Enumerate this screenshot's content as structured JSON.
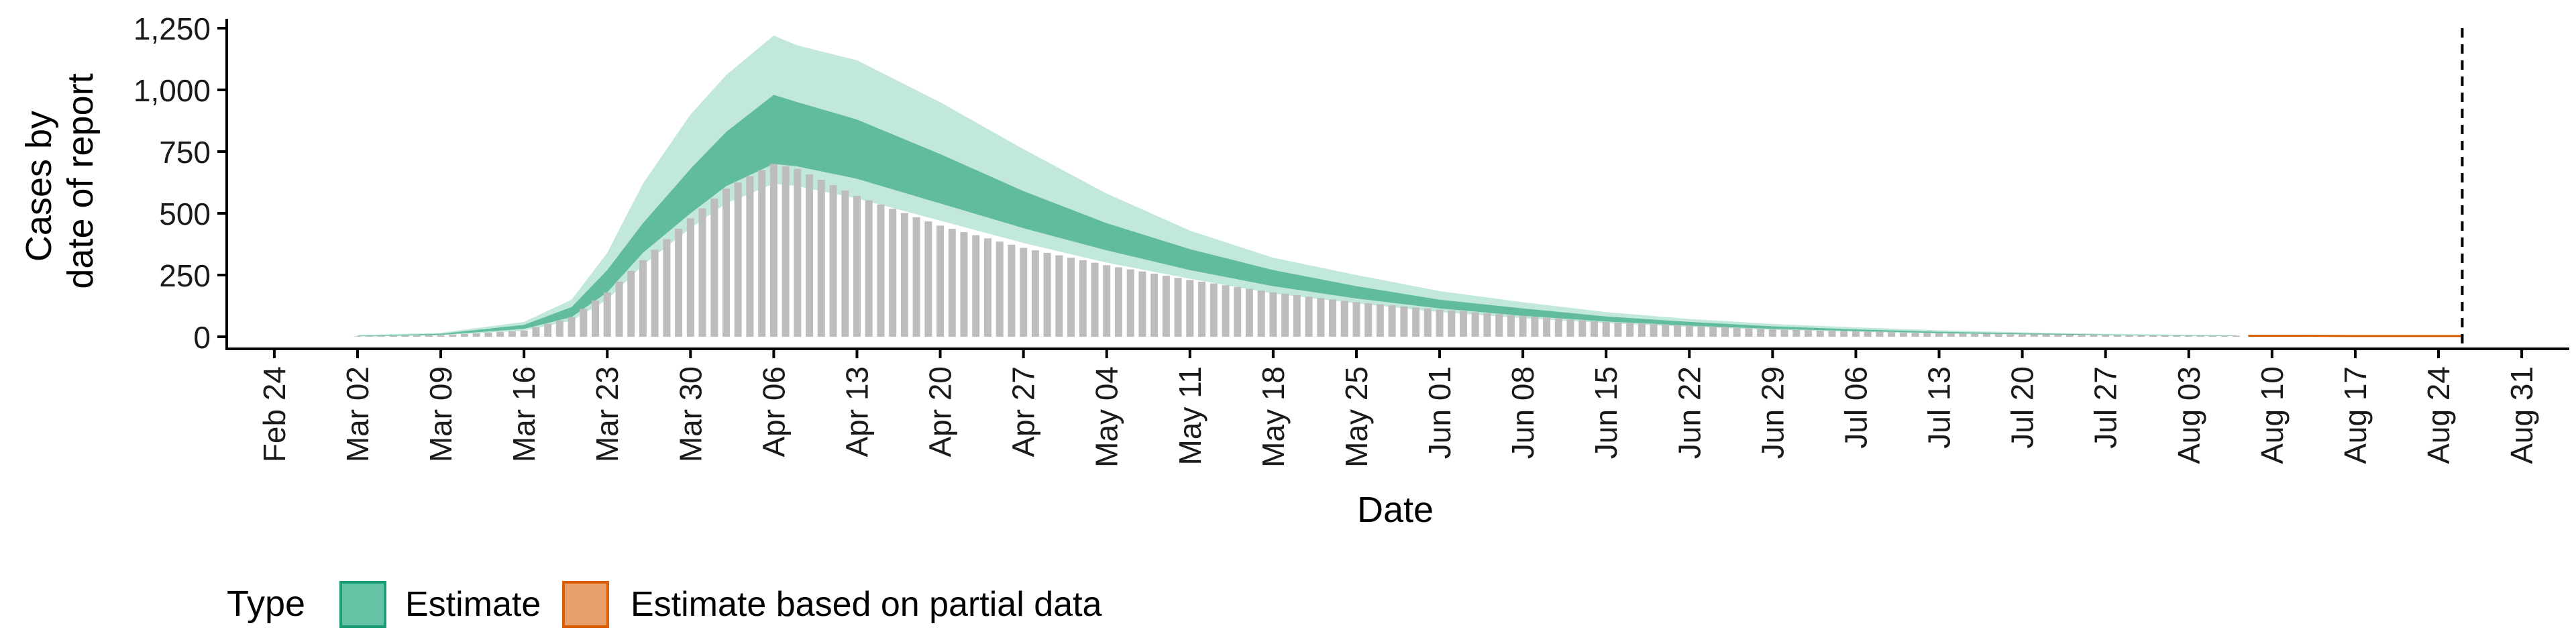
{
  "chart_data": {
    "type": "area",
    "xlabel": "Date",
    "ylabel": [
      "Cases by",
      "date of report"
    ],
    "ylim": [
      0,
      1250
    ],
    "yticks": [
      {
        "value": 0,
        "label": "0"
      },
      {
        "value": 250,
        "label": "250"
      },
      {
        "value": 500,
        "label": "500"
      },
      {
        "value": 750,
        "label": "750"
      },
      {
        "value": 1000,
        "label": "1,000"
      },
      {
        "value": 1250,
        "label": "1,250"
      }
    ],
    "xlim": [
      "2020-02-20",
      "2020-09-04"
    ],
    "xticks": [
      {
        "date": "2020-02-24",
        "label": "Feb 24"
      },
      {
        "date": "2020-03-02",
        "label": "Mar 02"
      },
      {
        "date": "2020-03-09",
        "label": "Mar 09"
      },
      {
        "date": "2020-03-16",
        "label": "Mar 16"
      },
      {
        "date": "2020-03-23",
        "label": "Mar 23"
      },
      {
        "date": "2020-03-30",
        "label": "Mar 30"
      },
      {
        "date": "2020-04-06",
        "label": "Apr 06"
      },
      {
        "date": "2020-04-13",
        "label": "Apr 13"
      },
      {
        "date": "2020-04-20",
        "label": "Apr 20"
      },
      {
        "date": "2020-04-27",
        "label": "Apr 27"
      },
      {
        "date": "2020-05-04",
        "label": "May 04"
      },
      {
        "date": "2020-05-11",
        "label": "May 11"
      },
      {
        "date": "2020-05-18",
        "label": "May 18"
      },
      {
        "date": "2020-05-25",
        "label": "May 25"
      },
      {
        "date": "2020-06-01",
        "label": "Jun 01"
      },
      {
        "date": "2020-06-08",
        "label": "Jun 08"
      },
      {
        "date": "2020-06-15",
        "label": "Jun 15"
      },
      {
        "date": "2020-06-22",
        "label": "Jun 22"
      },
      {
        "date": "2020-06-29",
        "label": "Jun 29"
      },
      {
        "date": "2020-07-06",
        "label": "Jul 06"
      },
      {
        "date": "2020-07-13",
        "label": "Jul 13"
      },
      {
        "date": "2020-07-20",
        "label": "Jul 20"
      },
      {
        "date": "2020-07-27",
        "label": "Jul 27"
      },
      {
        "date": "2020-08-03",
        "label": "Aug 03"
      },
      {
        "date": "2020-08-10",
        "label": "Aug 10"
      },
      {
        "date": "2020-08-17",
        "label": "Aug 17"
      },
      {
        "date": "2020-08-24",
        "label": "Aug 24"
      },
      {
        "date": "2020-08-31",
        "label": "Aug 31"
      }
    ],
    "reference_line": {
      "date": "2020-08-26",
      "style": "dashed"
    },
    "observed_cases": {
      "color": "#bdbdbd",
      "start_date": "2020-03-02",
      "end_date": "2020-08-07",
      "keypoints": [
        {
          "date": "2020-03-02",
          "value": 2
        },
        {
          "date": "2020-03-09",
          "value": 6
        },
        {
          "date": "2020-03-16",
          "value": 25
        },
        {
          "date": "2020-03-20",
          "value": 80
        },
        {
          "date": "2020-03-23",
          "value": 180
        },
        {
          "date": "2020-03-26",
          "value": 310
        },
        {
          "date": "2020-03-30",
          "value": 480
        },
        {
          "date": "2020-04-02",
          "value": 600
        },
        {
          "date": "2020-04-06",
          "value": 700
        },
        {
          "date": "2020-04-08",
          "value": 680
        },
        {
          "date": "2020-04-13",
          "value": 570
        },
        {
          "date": "2020-04-20",
          "value": 450
        },
        {
          "date": "2020-04-27",
          "value": 360
        },
        {
          "date": "2020-05-04",
          "value": 290
        },
        {
          "date": "2020-05-11",
          "value": 230
        },
        {
          "date": "2020-05-18",
          "value": 180
        },
        {
          "date": "2020-05-25",
          "value": 140
        },
        {
          "date": "2020-06-01",
          "value": 110
        },
        {
          "date": "2020-06-08",
          "value": 85
        },
        {
          "date": "2020-06-15",
          "value": 60
        },
        {
          "date": "2020-06-22",
          "value": 45
        },
        {
          "date": "2020-06-29",
          "value": 30
        },
        {
          "date": "2020-07-06",
          "value": 22
        },
        {
          "date": "2020-07-13",
          "value": 15
        },
        {
          "date": "2020-07-20",
          "value": 10
        },
        {
          "date": "2020-07-27",
          "value": 7
        },
        {
          "date": "2020-08-03",
          "value": 5
        },
        {
          "date": "2020-08-07",
          "value": 4
        }
      ]
    },
    "series": [
      {
        "name": "Estimate",
        "color_fill": "#66c2a5",
        "color_dark": "#3fae86",
        "color_line": "#1b9e77",
        "date": [
          "2020-03-02",
          "2020-03-09",
          "2020-03-16",
          "2020-03-20",
          "2020-03-23",
          "2020-03-26",
          "2020-03-30",
          "2020-04-02",
          "2020-04-06",
          "2020-04-08",
          "2020-04-13",
          "2020-04-20",
          "2020-04-27",
          "2020-05-04",
          "2020-05-11",
          "2020-05-18",
          "2020-05-25",
          "2020-06-01",
          "2020-06-08",
          "2020-06-15",
          "2020-06-22",
          "2020-06-29",
          "2020-07-06",
          "2020-07-13",
          "2020-07-20",
          "2020-07-27",
          "2020-08-03",
          "2020-08-07"
        ],
        "median": [
          3,
          10,
          40,
          100,
          220,
          400,
          580,
          720,
          840,
          820,
          750,
          640,
          520,
          410,
          320,
          240,
          180,
          135,
          100,
          72,
          52,
          37,
          27,
          18,
          12,
          8,
          5,
          4
        ],
        "ci50_lower": [
          2,
          8,
          32,
          80,
          180,
          340,
          500,
          610,
          700,
          690,
          640,
          540,
          440,
          350,
          270,
          205,
          155,
          115,
          85,
          62,
          45,
          32,
          23,
          15,
          10,
          7,
          4,
          3
        ],
        "ci50_upper": [
          4,
          12,
          48,
          120,
          270,
          460,
          680,
          830,
          980,
          950,
          880,
          740,
          590,
          460,
          355,
          270,
          205,
          150,
          115,
          82,
          60,
          42,
          30,
          20,
          14,
          9,
          6,
          5
        ],
        "ci90_lower": [
          1,
          6,
          25,
          65,
          150,
          290,
          440,
          540,
          620,
          610,
          560,
          470,
          380,
          300,
          235,
          175,
          135,
          100,
          75,
          55,
          40,
          28,
          20,
          13,
          9,
          6,
          4,
          3
        ],
        "ci90_upper": [
          6,
          16,
          60,
          150,
          340,
          620,
          900,
          1060,
          1220,
          1180,
          1120,
          950,
          760,
          580,
          430,
          320,
          250,
          185,
          140,
          100,
          72,
          52,
          38,
          26,
          18,
          12,
          8,
          6
        ]
      },
      {
        "name": "Estimate based on partial data",
        "color_fill": "#fc8d62",
        "color_line": "#d95f02",
        "date": [
          "2020-08-08",
          "2020-08-12",
          "2020-08-17",
          "2020-08-22",
          "2020-08-26"
        ],
        "median": [
          4,
          4,
          3,
          3,
          3
        ],
        "ci_lower": [
          3,
          3,
          2,
          2,
          2
        ],
        "ci_upper": [
          6,
          5,
          5,
          5,
          5
        ]
      }
    ],
    "legend": {
      "title": "Type",
      "position": "bottom-left",
      "items": [
        {
          "label": "Estimate",
          "fill": "#66c2a5",
          "stroke": "#1b9e77"
        },
        {
          "label": "Estimate based on partial data",
          "fill": "#e9a06a",
          "stroke": "#d95f02"
        }
      ]
    }
  }
}
